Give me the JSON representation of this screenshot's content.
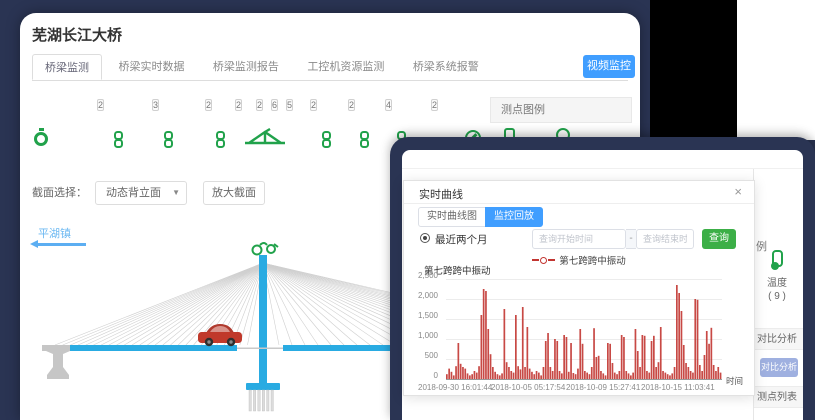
{
  "colors": {
    "accent_blue": "#409eff",
    "bridge_blue": "#29abe2",
    "sensor_green": "#21a24b",
    "alert_red": "#c23531",
    "button_green": "#3caf47",
    "frame_navy": "#2a3453",
    "disabled_button": "#9fb0e0"
  },
  "window": {
    "title": "芜湖长江大桥"
  },
  "nav_tabs": [
    {
      "label": "桥梁监测",
      "active": true
    },
    {
      "label": "桥梁实时数据",
      "active": false
    },
    {
      "label": "桥梁监测报告",
      "active": false
    },
    {
      "label": "工控机资源监测",
      "active": false
    },
    {
      "label": "桥梁系统报警",
      "active": false
    }
  ],
  "toolbar": {
    "video_button": "视频监控"
  },
  "sensor_strip": {
    "badges": [
      "2",
      "3",
      "2",
      "2",
      "2",
      "6",
      "5",
      "2",
      "2",
      "4",
      "2"
    ]
  },
  "legend_panel": {
    "title": "测点图例"
  },
  "section_bar": {
    "label": "截面选择：",
    "dropdown_value": "动态背立面",
    "dropdown_caret": "▼",
    "zoom_button": "放大截面"
  },
  "bridge": {
    "side_label": "平湖镇"
  },
  "back_sidebar": {
    "legend_tail": "例",
    "temp_label": "温度",
    "temp_count": "( 9 )",
    "compare_header": "对比分析",
    "compare_button": "对比分析",
    "list_header": "测点列表"
  },
  "modal": {
    "title": "实时曲线",
    "close": "×",
    "tabs": [
      {
        "label": "实时曲线图",
        "active": false
      },
      {
        "label": "监控回放",
        "active": true
      }
    ],
    "radio_label": "最近两个月",
    "query_start_placeholder": "查询开始时间",
    "range_separator": "-",
    "query_end_placeholder": "查询结束时间",
    "query_button": "查询"
  },
  "chart_data": {
    "type": "bar",
    "title": "第七跨跨中振动",
    "legend": "第七跨跨中振动",
    "xlabel": "时间",
    "ylim": [
      0,
      2500
    ],
    "grid": true,
    "legend_position": "top",
    "yticks": [
      "2,500",
      "2,000",
      "1,500",
      "1,000",
      "500",
      "0"
    ],
    "xticks": [
      "2018-09-30 16:01:44",
      "2018-10-05 05:17:54",
      "2018-10-09 15:27:41",
      "2018-10-15 11:03:41"
    ],
    "series": [
      {
        "name": "第七跨跨中振动",
        "color": "#c23531",
        "values": [
          120,
          260,
          180,
          90,
          320,
          900,
          380,
          300,
          260,
          140,
          90,
          120,
          200,
          160,
          320,
          1600,
          2250,
          2200,
          1250,
          620,
          300,
          180,
          120,
          90,
          140,
          1750,
          420,
          300,
          200,
          160,
          1600,
          320,
          240,
          1800,
          300,
          1300,
          260,
          180,
          120,
          200,
          160,
          90,
          300,
          950,
          1150,
          300,
          200,
          1000,
          950,
          200,
          140,
          1100,
          1050,
          180,
          900,
          150,
          120,
          260,
          1250,
          880,
          200,
          160,
          120,
          300,
          1270,
          550,
          580,
          200,
          140,
          90,
          900,
          880,
          400,
          160,
          120,
          200,
          1100,
          1050,
          200,
          140,
          90,
          160,
          1250,
          700,
          300,
          1100,
          1080,
          200,
          160,
          950,
          1080,
          300,
          420,
          1300,
          200,
          160,
          120,
          90,
          140,
          300,
          2350,
          2150,
          1700,
          850,
          400,
          300,
          200,
          160,
          2000,
          1980,
          350,
          200,
          600,
          1200,
          880,
          1280,
          350,
          200,
          300,
          160
        ]
      }
    ]
  }
}
